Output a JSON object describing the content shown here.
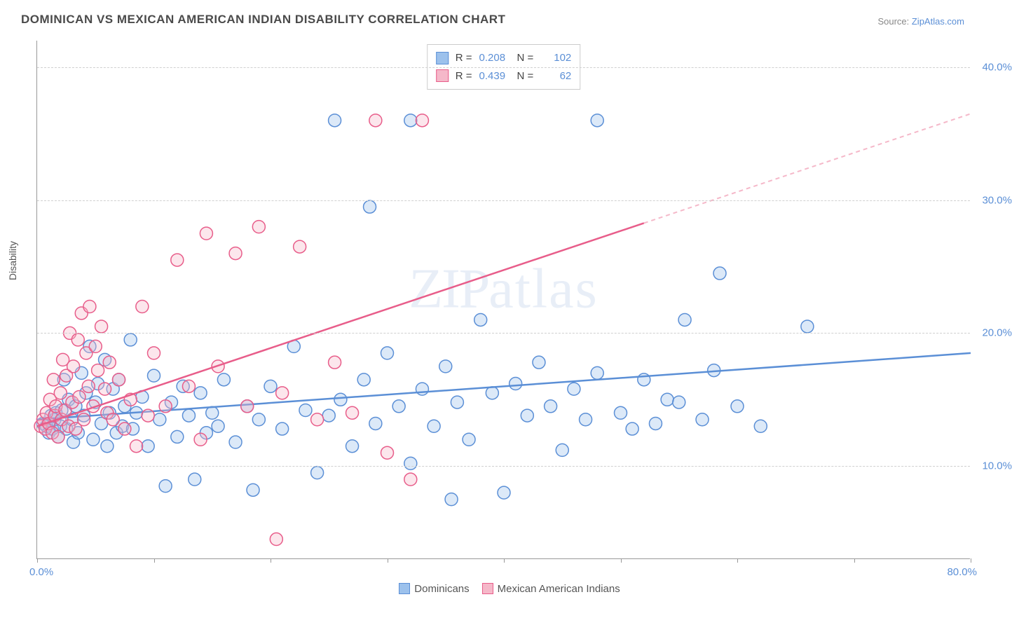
{
  "title": "DOMINICAN VS MEXICAN AMERICAN INDIAN DISABILITY CORRELATION CHART",
  "source_prefix": "Source: ",
  "source_link": "ZipAtlas.com",
  "watermark": "ZIPatlas",
  "y_axis_title": "Disability",
  "chart": {
    "type": "scatter",
    "xlim": [
      0,
      80
    ],
    "ylim": [
      3,
      42
    ],
    "x_ticks": [
      0,
      10,
      20,
      30,
      40,
      50,
      60,
      70,
      80
    ],
    "x_tick_labels": {
      "first": "0.0%",
      "last": "80.0%"
    },
    "y_grid": [
      10,
      20,
      30,
      40
    ],
    "y_grid_labels": [
      "10.0%",
      "20.0%",
      "30.0%",
      "40.0%"
    ],
    "background_color": "#ffffff",
    "grid_color": "#d0d0d0",
    "marker_radius": 9,
    "marker_fill_opacity": 0.35,
    "marker_stroke_width": 1.5,
    "trend_line_width": 2.5,
    "series": [
      {
        "name": "Dominicans",
        "color_fill": "#9cc1ec",
        "color_stroke": "#5b8fd6",
        "r": 0.208,
        "n": 102,
        "trend": {
          "x1": 0,
          "y1": 13.5,
          "x2": 80,
          "y2": 18.5,
          "solid_until_x": 80,
          "dash_color": "#5b8fd6"
        },
        "points": [
          [
            0.5,
            13.2
          ],
          [
            0.8,
            13.0
          ],
          [
            1.0,
            12.5
          ],
          [
            1.2,
            13.8
          ],
          [
            1.3,
            12.8
          ],
          [
            1.5,
            13.5
          ],
          [
            1.6,
            14.0
          ],
          [
            1.8,
            12.2
          ],
          [
            2.0,
            13.0
          ],
          [
            2.1,
            14.2
          ],
          [
            2.3,
            16.5
          ],
          [
            2.5,
            12.8
          ],
          [
            2.7,
            15.0
          ],
          [
            3.0,
            13.5
          ],
          [
            3.1,
            11.8
          ],
          [
            3.3,
            14.5
          ],
          [
            3.5,
            12.5
          ],
          [
            3.8,
            17.0
          ],
          [
            4.0,
            13.8
          ],
          [
            4.2,
            15.5
          ],
          [
            4.5,
            19.0
          ],
          [
            4.8,
            12.0
          ],
          [
            5.0,
            14.8
          ],
          [
            5.2,
            16.2
          ],
          [
            5.5,
            13.2
          ],
          [
            5.8,
            18.0
          ],
          [
            6.0,
            11.5
          ],
          [
            6.2,
            14.0
          ],
          [
            6.5,
            15.8
          ],
          [
            6.8,
            12.5
          ],
          [
            7.0,
            16.5
          ],
          [
            7.3,
            13.0
          ],
          [
            7.5,
            14.5
          ],
          [
            8.0,
            19.5
          ],
          [
            8.2,
            12.8
          ],
          [
            8.5,
            14.0
          ],
          [
            9.0,
            15.2
          ],
          [
            9.5,
            11.5
          ],
          [
            10.0,
            16.8
          ],
          [
            10.5,
            13.5
          ],
          [
            11.0,
            8.5
          ],
          [
            11.5,
            14.8
          ],
          [
            12.0,
            12.2
          ],
          [
            12.5,
            16.0
          ],
          [
            13.0,
            13.8
          ],
          [
            13.5,
            9.0
          ],
          [
            14.0,
            15.5
          ],
          [
            14.5,
            12.5
          ],
          [
            15.0,
            14.0
          ],
          [
            15.5,
            13.0
          ],
          [
            16.0,
            16.5
          ],
          [
            17.0,
            11.8
          ],
          [
            18.0,
            14.5
          ],
          [
            18.5,
            8.2
          ],
          [
            19.0,
            13.5
          ],
          [
            20.0,
            16.0
          ],
          [
            21.0,
            12.8
          ],
          [
            22.0,
            19.0
          ],
          [
            23.0,
            14.2
          ],
          [
            24.0,
            9.5
          ],
          [
            25.0,
            13.8
          ],
          [
            25.5,
            36.0
          ],
          [
            26.0,
            15.0
          ],
          [
            27.0,
            11.5
          ],
          [
            28.0,
            16.5
          ],
          [
            28.5,
            29.5
          ],
          [
            29.0,
            13.2
          ],
          [
            30.0,
            18.5
          ],
          [
            31.0,
            14.5
          ],
          [
            32.0,
            10.2
          ],
          [
            33.0,
            15.8
          ],
          [
            34.0,
            13.0
          ],
          [
            35.0,
            17.5
          ],
          [
            35.5,
            7.5
          ],
          [
            36.0,
            14.8
          ],
          [
            37.0,
            12.0
          ],
          [
            38.0,
            21.0
          ],
          [
            39.0,
            15.5
          ],
          [
            40.0,
            8.0
          ],
          [
            41.0,
            16.2
          ],
          [
            42.0,
            13.8
          ],
          [
            43.0,
            17.8
          ],
          [
            44.0,
            14.5
          ],
          [
            45.0,
            11.2
          ],
          [
            46.0,
            15.8
          ],
          [
            47.0,
            13.5
          ],
          [
            48.0,
            17.0
          ],
          [
            50.0,
            14.0
          ],
          [
            51.0,
            12.8
          ],
          [
            52.0,
            16.5
          ],
          [
            53.0,
            13.2
          ],
          [
            54.0,
            15.0
          ],
          [
            55.0,
            14.8
          ],
          [
            55.5,
            21.0
          ],
          [
            57.0,
            13.5
          ],
          [
            58.0,
            17.2
          ],
          [
            58.5,
            24.5
          ],
          [
            60.0,
            14.5
          ],
          [
            62.0,
            13.0
          ],
          [
            66.0,
            20.5
          ],
          [
            48.0,
            36.0
          ],
          [
            32.0,
            36.0
          ]
        ]
      },
      {
        "name": "Mexican American Indians",
        "color_fill": "#f5b8c9",
        "color_stroke": "#e85d8a",
        "r": 0.439,
        "n": 62,
        "trend": {
          "x1": 0,
          "y1": 13.0,
          "x2": 80,
          "y2": 36.5,
          "solid_until_x": 52,
          "dash_color": "#f5b8c9"
        },
        "points": [
          [
            0.3,
            13.0
          ],
          [
            0.5,
            13.5
          ],
          [
            0.7,
            12.8
          ],
          [
            0.8,
            14.0
          ],
          [
            1.0,
            13.2
          ],
          [
            1.1,
            15.0
          ],
          [
            1.3,
            12.5
          ],
          [
            1.4,
            16.5
          ],
          [
            1.5,
            13.8
          ],
          [
            1.6,
            14.5
          ],
          [
            1.8,
            12.2
          ],
          [
            2.0,
            15.5
          ],
          [
            2.1,
            13.5
          ],
          [
            2.2,
            18.0
          ],
          [
            2.4,
            14.2
          ],
          [
            2.5,
            16.8
          ],
          [
            2.7,
            13.0
          ],
          [
            2.8,
            20.0
          ],
          [
            3.0,
            14.8
          ],
          [
            3.1,
            17.5
          ],
          [
            3.3,
            12.8
          ],
          [
            3.5,
            19.5
          ],
          [
            3.6,
            15.2
          ],
          [
            3.8,
            21.5
          ],
          [
            4.0,
            13.5
          ],
          [
            4.2,
            18.5
          ],
          [
            4.4,
            16.0
          ],
          [
            4.5,
            22.0
          ],
          [
            4.8,
            14.5
          ],
          [
            5.0,
            19.0
          ],
          [
            5.2,
            17.2
          ],
          [
            5.5,
            20.5
          ],
          [
            5.8,
            15.8
          ],
          [
            6.0,
            14.0
          ],
          [
            6.2,
            17.8
          ],
          [
            6.5,
            13.5
          ],
          [
            7.0,
            16.5
          ],
          [
            7.5,
            12.8
          ],
          [
            8.0,
            15.0
          ],
          [
            8.5,
            11.5
          ],
          [
            9.0,
            22.0
          ],
          [
            9.5,
            13.8
          ],
          [
            10.0,
            18.5
          ],
          [
            11.0,
            14.5
          ],
          [
            12.0,
            25.5
          ],
          [
            13.0,
            16.0
          ],
          [
            14.0,
            12.0
          ],
          [
            14.5,
            27.5
          ],
          [
            15.5,
            17.5
          ],
          [
            17.0,
            26.0
          ],
          [
            18.0,
            14.5
          ],
          [
            19.0,
            28.0
          ],
          [
            20.5,
            4.5
          ],
          [
            21.0,
            15.5
          ],
          [
            22.5,
            26.5
          ],
          [
            24.0,
            13.5
          ],
          [
            25.5,
            17.8
          ],
          [
            27.0,
            14.0
          ],
          [
            29.0,
            36.0
          ],
          [
            30.0,
            11.0
          ],
          [
            33.0,
            36.0
          ],
          [
            32.0,
            9.0
          ]
        ]
      }
    ]
  },
  "stats_legend": {
    "r_label": "R =",
    "n_label": "N ="
  },
  "axis_label_color": "#5b8fd6"
}
